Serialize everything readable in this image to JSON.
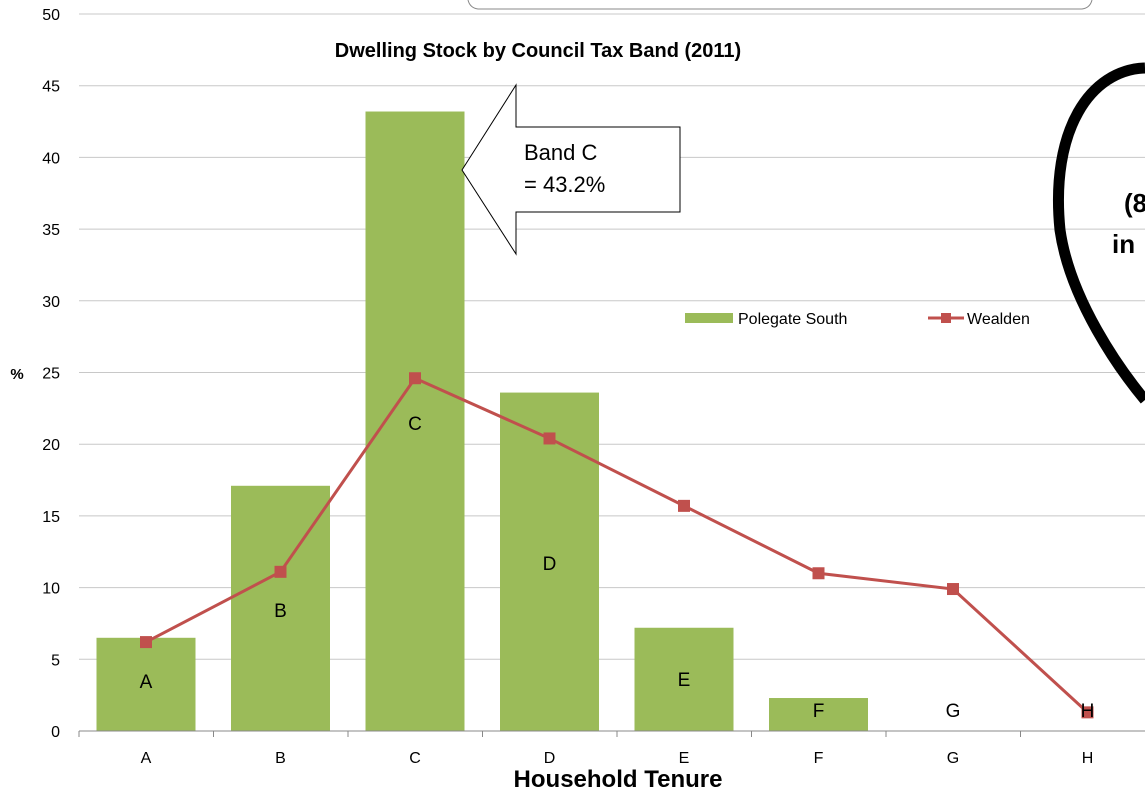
{
  "chart_data": {
    "type": "bar",
    "title": "Dwelling  Stock by Council Tax Band (2011)",
    "xlabel": "Household Tenure",
    "ylabel": "%",
    "ylim": [
      0,
      50
    ],
    "yticks": [
      0,
      5,
      10,
      15,
      20,
      25,
      30,
      35,
      40,
      45,
      50
    ],
    "categories": [
      "A",
      "B",
      "C",
      "D",
      "E",
      "F",
      "G",
      "H"
    ],
    "series": [
      {
        "name": "Polegate South",
        "type": "bar",
        "color": "#9BBB59",
        "values": [
          6.5,
          17.1,
          43.2,
          23.6,
          7.2,
          2.3,
          0,
          0
        ]
      },
      {
        "name": "Wealden",
        "type": "line",
        "color": "#C0504D",
        "values": [
          6.2,
          11.1,
          24.6,
          20.4,
          15.7,
          11.0,
          9.9,
          1.3
        ]
      }
    ],
    "bar_labels": [
      "A",
      "B",
      "C",
      "D",
      "E",
      "F",
      "G",
      "H"
    ],
    "grid": true,
    "legend_position": "right",
    "callout": {
      "line1": "Band C",
      "line2": "= 43.2%",
      "target": "C"
    },
    "cutoff_text": {
      "line1": "(8",
      "line2": "in"
    }
  }
}
